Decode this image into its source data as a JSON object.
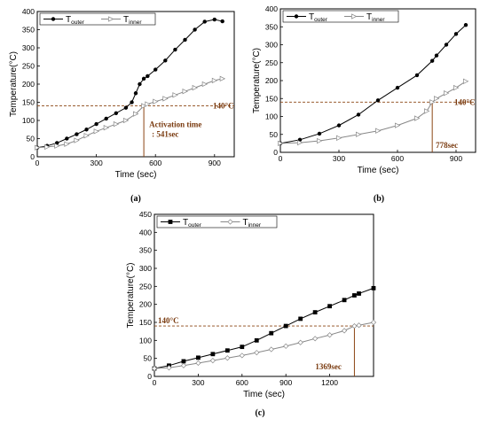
{
  "chart_data": [
    {
      "panel_label": "(a)",
      "type": "line",
      "xlabel": "Time (sec)",
      "ylabel": "Temperature(°C)",
      "xlim": [
        0,
        1000
      ],
      "ylim": [
        0,
        400
      ],
      "xticks": [
        0,
        300,
        600,
        900
      ],
      "yticks": [
        0,
        50,
        100,
        150,
        200,
        250,
        300,
        350,
        400
      ],
      "legend": {
        "position": "top-left"
      },
      "series": [
        {
          "name": "T_outer",
          "legend_main": "T",
          "legend_sub": "outer",
          "marker": "filled-circle",
          "color": "#000000",
          "x": [
            0,
            50,
            100,
            150,
            200,
            250,
            300,
            350,
            400,
            450,
            480,
            500,
            520,
            541,
            560,
            600,
            650,
            700,
            750,
            800,
            850,
            900,
            940
          ],
          "y": [
            25,
            30,
            38,
            50,
            62,
            75,
            90,
            105,
            120,
            135,
            150,
            175,
            200,
            215,
            222,
            240,
            265,
            295,
            322,
            350,
            372,
            378,
            373
          ]
        },
        {
          "name": "T_inner",
          "legend_main": "T",
          "legend_sub": "inner",
          "marker": "open-triangle",
          "color": "#888888",
          "x": [
            0,
            50,
            100,
            150,
            200,
            250,
            300,
            350,
            400,
            450,
            500,
            541,
            560,
            600,
            650,
            700,
            750,
            800,
            850,
            900,
            940
          ],
          "y": [
            25,
            27,
            30,
            35,
            45,
            58,
            70,
            80,
            90,
            100,
            118,
            140,
            145,
            152,
            160,
            170,
            180,
            190,
            200,
            210,
            215
          ]
        }
      ],
      "threshold": {
        "value": 140,
        "label": "140°C"
      },
      "annotation": {
        "x": 541,
        "line1": "Activation time",
        "line2": ": 541sec"
      }
    },
    {
      "panel_label": "(b)",
      "type": "line",
      "xlabel": "Time (sec)",
      "ylabel": "Temperature(°C)",
      "xlim": [
        0,
        1000
      ],
      "ylim": [
        0,
        400
      ],
      "xticks": [
        0,
        300,
        600,
        900
      ],
      "yticks": [
        0,
        50,
        100,
        150,
        200,
        250,
        300,
        350,
        400
      ],
      "legend": {
        "position": "top-left"
      },
      "series": [
        {
          "name": "T_outer",
          "legend_main": "T",
          "legend_sub": "outer",
          "marker": "filled-circle",
          "color": "#000000",
          "x": [
            0,
            100,
            200,
            300,
            400,
            500,
            600,
            700,
            778,
            800,
            850,
            900,
            950
          ],
          "y": [
            25,
            35,
            52,
            75,
            105,
            145,
            180,
            215,
            255,
            270,
            300,
            330,
            355
          ]
        },
        {
          "name": "T_inner",
          "legend_main": "T",
          "legend_sub": "inner",
          "marker": "open-triangle",
          "color": "#888888",
          "x": [
            0,
            100,
            200,
            300,
            400,
            500,
            600,
            700,
            750,
            778,
            800,
            850,
            900,
            950
          ],
          "y": [
            25,
            27,
            32,
            40,
            50,
            60,
            75,
            95,
            115,
            140,
            150,
            165,
            180,
            198
          ]
        }
      ],
      "threshold": {
        "value": 140,
        "label": "140°C"
      },
      "annotation": {
        "x": 778,
        "line1": "778sec",
        "line2": ""
      }
    },
    {
      "panel_label": "(c)",
      "type": "line",
      "xlabel": "Time (sec)",
      "ylabel": "Temperature(°C)",
      "xlim": [
        0,
        1500
      ],
      "ylim": [
        0,
        450
      ],
      "xticks": [
        0,
        300,
        600,
        900,
        1200
      ],
      "yticks": [
        0,
        50,
        100,
        150,
        200,
        250,
        300,
        350,
        400,
        450
      ],
      "legend": {
        "position": "top-left"
      },
      "series": [
        {
          "name": "T_outer",
          "legend_main": "T",
          "legend_sub": "outer",
          "marker": "filled-square",
          "color": "#000000",
          "x": [
            0,
            100,
            200,
            300,
            400,
            500,
            600,
            700,
            800,
            900,
            1000,
            1100,
            1200,
            1300,
            1369,
            1400,
            1500
          ],
          "y": [
            22,
            30,
            42,
            52,
            62,
            72,
            82,
            100,
            120,
            140,
            160,
            178,
            195,
            212,
            225,
            230,
            245
          ]
        },
        {
          "name": "T_inner",
          "legend_main": "T",
          "legend_sub": "inner",
          "marker": "open-diamond",
          "color": "#888888",
          "x": [
            0,
            100,
            200,
            300,
            400,
            500,
            600,
            700,
            800,
            900,
            1000,
            1100,
            1200,
            1300,
            1369,
            1400,
            1500
          ],
          "y": [
            22,
            24,
            30,
            37,
            44,
            51,
            58,
            66,
            75,
            84,
            94,
            105,
            115,
            127,
            140,
            142,
            150
          ]
        }
      ],
      "threshold": {
        "value": 140,
        "label": "140°C"
      },
      "annotation": {
        "x": 1369,
        "line1": "1369sec",
        "line2": ""
      }
    }
  ]
}
